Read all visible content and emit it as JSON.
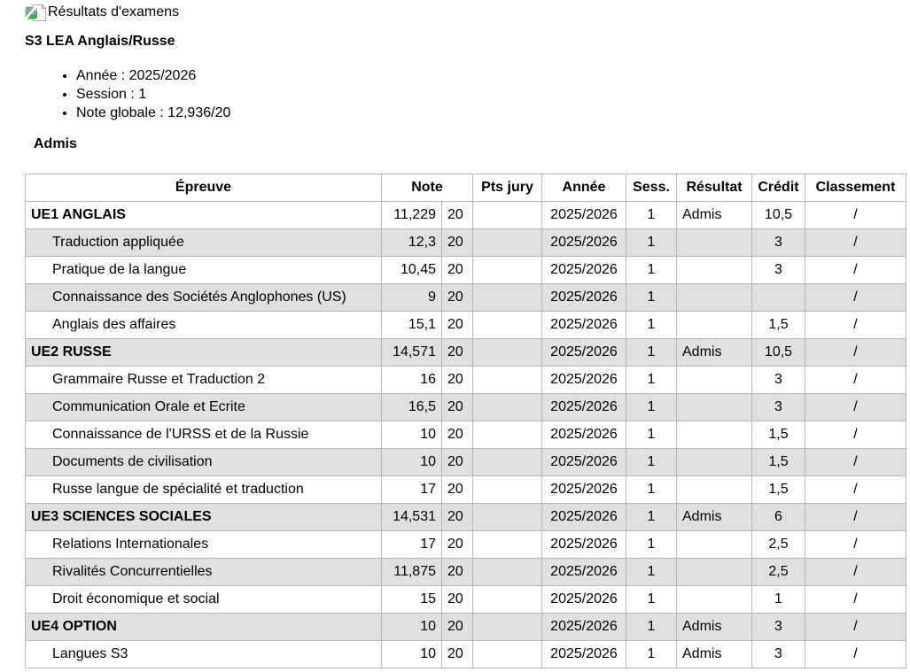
{
  "page": {
    "title": "Résultats d'examens",
    "title_icon": "broken-image-icon",
    "subtitle": "S3 LEA Anglais/Russe",
    "info_items": [
      "Année : 2025/2026",
      "Session : 1",
      "Note globale : 12,936/20"
    ],
    "overall_result": "Admis"
  },
  "results_table": {
    "headers": {
      "epreuve": "Épreuve",
      "note": "Note",
      "pts_jury": "Pts jury",
      "annee": "Année",
      "sess": "Sess.",
      "resultat": "Résultat",
      "credit": "Crédit",
      "classement": "Classement"
    },
    "rows": [
      {
        "label": "UE1 ANGLAIS",
        "is_ue": true,
        "note": "11,229",
        "max": "20",
        "pts_jury": "",
        "annee": "2025/2026",
        "sess": "1",
        "resultat": "Admis",
        "credit": "10,5",
        "classement": "/"
      },
      {
        "label": "Traduction appliquée",
        "is_ue": false,
        "note": "12,3",
        "max": "20",
        "pts_jury": "",
        "annee": "2025/2026",
        "sess": "1",
        "resultat": "",
        "credit": "3",
        "classement": "/"
      },
      {
        "label": "Pratique de la langue",
        "is_ue": false,
        "note": "10,45",
        "max": "20",
        "pts_jury": "",
        "annee": "2025/2026",
        "sess": "1",
        "resultat": "",
        "credit": "3",
        "classement": "/"
      },
      {
        "label": "Connaissance des Sociétés Anglophones (US)",
        "is_ue": false,
        "note": "9",
        "max": "20",
        "pts_jury": "",
        "annee": "2025/2026",
        "sess": "1",
        "resultat": "",
        "credit": "",
        "classement": "/"
      },
      {
        "label": "Anglais des affaires",
        "is_ue": false,
        "note": "15,1",
        "max": "20",
        "pts_jury": "",
        "annee": "2025/2026",
        "sess": "1",
        "resultat": "",
        "credit": "1,5",
        "classement": "/"
      },
      {
        "label": "UE2 RUSSE",
        "is_ue": true,
        "note": "14,571",
        "max": "20",
        "pts_jury": "",
        "annee": "2025/2026",
        "sess": "1",
        "resultat": "Admis",
        "credit": "10,5",
        "classement": "/"
      },
      {
        "label": "Grammaire Russe et Traduction 2",
        "is_ue": false,
        "note": "16",
        "max": "20",
        "pts_jury": "",
        "annee": "2025/2026",
        "sess": "1",
        "resultat": "",
        "credit": "3",
        "classement": "/"
      },
      {
        "label": "Communication Orale et Ecrite",
        "is_ue": false,
        "note": "16,5",
        "max": "20",
        "pts_jury": "",
        "annee": "2025/2026",
        "sess": "1",
        "resultat": "",
        "credit": "3",
        "classement": "/"
      },
      {
        "label": "Connaissance de l'URSS et de la Russie",
        "is_ue": false,
        "note": "10",
        "max": "20",
        "pts_jury": "",
        "annee": "2025/2026",
        "sess": "1",
        "resultat": "",
        "credit": "1,5",
        "classement": "/"
      },
      {
        "label": "Documents de civilisation",
        "is_ue": false,
        "note": "10",
        "max": "20",
        "pts_jury": "",
        "annee": "2025/2026",
        "sess": "1",
        "resultat": "",
        "credit": "1,5",
        "classement": "/"
      },
      {
        "label": "Russe langue de spécialité et traduction",
        "is_ue": false,
        "note": "17",
        "max": "20",
        "pts_jury": "",
        "annee": "2025/2026",
        "sess": "1",
        "resultat": "",
        "credit": "1,5",
        "classement": "/"
      },
      {
        "label": "UE3 SCIENCES SOCIALES",
        "is_ue": true,
        "note": "14,531",
        "max": "20",
        "pts_jury": "",
        "annee": "2025/2026",
        "sess": "1",
        "resultat": "Admis",
        "credit": "6",
        "classement": "/"
      },
      {
        "label": "Relations Internationales",
        "is_ue": false,
        "note": "17",
        "max": "20",
        "pts_jury": "",
        "annee": "2025/2026",
        "sess": "1",
        "resultat": "",
        "credit": "2,5",
        "classement": "/"
      },
      {
        "label": "Rivalités Concurrentielles",
        "is_ue": false,
        "note": "11,875",
        "max": "20",
        "pts_jury": "",
        "annee": "2025/2026",
        "sess": "1",
        "resultat": "",
        "credit": "2,5",
        "classement": "/"
      },
      {
        "label": "Droit économique et social",
        "is_ue": false,
        "note": "15",
        "max": "20",
        "pts_jury": "",
        "annee": "2025/2026",
        "sess": "1",
        "resultat": "",
        "credit": "1",
        "classement": "/"
      },
      {
        "label": "UE4 OPTION",
        "is_ue": true,
        "note": "10",
        "max": "20",
        "pts_jury": "",
        "annee": "2025/2026",
        "sess": "1",
        "resultat": "Admis",
        "credit": "3",
        "classement": "/"
      },
      {
        "label": "Langues S3",
        "is_ue": false,
        "note": "10",
        "max": "20",
        "pts_jury": "",
        "annee": "2025/2026",
        "sess": "1",
        "resultat": "Admis",
        "credit": "3",
        "classement": "/"
      }
    ]
  },
  "colors": {
    "row_alternate": "#e0e0e0",
    "cell_border": "#b7b7b7",
    "outer_border": "#8f8f8f",
    "text": "#000000",
    "background": "#ffffff"
  }
}
